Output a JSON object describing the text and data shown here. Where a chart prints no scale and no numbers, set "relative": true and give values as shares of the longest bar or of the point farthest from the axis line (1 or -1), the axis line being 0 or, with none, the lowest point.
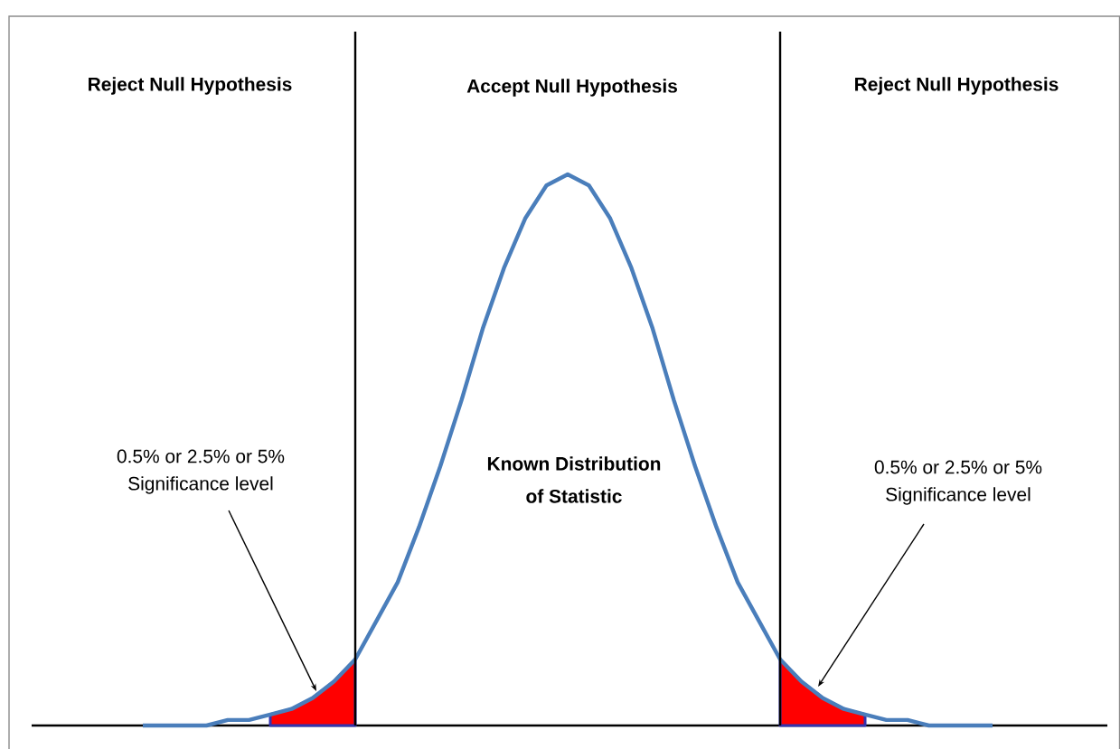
{
  "chart_data": {
    "type": "line",
    "relative": true,
    "categories": [
      null,
      null,
      null,
      null,
      null,
      null,
      null,
      null,
      null,
      null,
      null,
      null,
      null,
      null,
      null,
      null,
      null,
      null,
      null,
      null,
      null,
      null,
      null,
      null,
      null,
      null,
      null,
      null,
      null,
      null,
      null,
      null,
      null,
      null,
      null,
      null,
      null,
      null,
      null,
      null,
      null
    ],
    "series": [
      {
        "color": "#4a7ebb",
        "values": [
          0,
          0,
          0,
          0,
          0.01,
          0.01,
          0.02,
          0.03,
          0.05,
          0.08,
          0.12,
          0.19,
          0.26,
          0.36,
          0.47,
          0.59,
          0.72,
          0.83,
          0.92,
          0.98,
          1,
          0.98,
          0.92,
          0.83,
          0.72,
          0.59,
          0.47,
          0.36,
          0.26,
          0.19,
          0.12,
          0.08,
          0.05,
          0.03,
          0.02,
          0.01,
          0.01,
          0,
          0,
          0,
          0
        ]
      },
      {
        "type": "area",
        "color": "#ff0000",
        "values": [
          null,
          null,
          null,
          null,
          null,
          null,
          0.02,
          0.03,
          0.05,
          0.08,
          0.12,
          null,
          null,
          null,
          null,
          null,
          null,
          null,
          null,
          null,
          null,
          null,
          null,
          null,
          null,
          null,
          null,
          null,
          null,
          null,
          0.12,
          0.08,
          0.05,
          0.03,
          0.02,
          null,
          null,
          null,
          null,
          null,
          null
        ]
      }
    ],
    "annotations": [
      "Reject Null Hypothesis",
      "Accept Null Hypothesis",
      "Reject Null Hypothesis",
      "0.5% or 2.5% or 5%",
      "Significance level",
      "0.5% or 2.5% or 5%",
      "Significance level",
      "Known Distribution",
      "of Statistic"
    ]
  }
}
